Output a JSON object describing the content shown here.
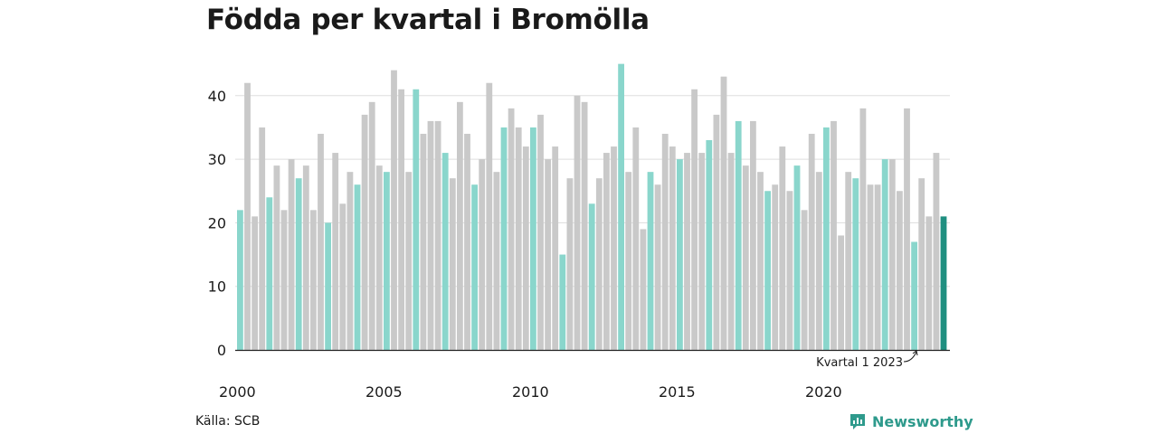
{
  "title": "Födda per kvartal i Bromölla",
  "source": "Källa: SCB",
  "brand": "Newsworthy",
  "annotation": "Kvartal 1 2023",
  "colors": {
    "q1": "#8ad6cc",
    "other": "#c9c9c9",
    "highlight": "#1f8f80",
    "grid": "#dddddd",
    "brand": "#2e9a8c"
  },
  "chart_data": {
    "type": "bar",
    "title": "Födda per kvartal i Bromölla",
    "xlabel": "",
    "ylabel": "",
    "ylim": [
      0,
      45
    ],
    "yticks": [
      0,
      10,
      20,
      30,
      40
    ],
    "xtick_labels": [
      "2000",
      "2005",
      "2010",
      "2015",
      "2020"
    ],
    "grid": true,
    "start_year": 2000,
    "values": [
      22,
      42,
      21,
      35,
      24,
      29,
      22,
      30,
      27,
      29,
      22,
      34,
      20,
      31,
      23,
      28,
      26,
      37,
      39,
      29,
      28,
      44,
      41,
      28,
      41,
      34,
      36,
      36,
      31,
      27,
      39,
      34,
      26,
      30,
      42,
      28,
      35,
      38,
      35,
      32,
      35,
      37,
      30,
      32,
      15,
      27,
      40,
      39,
      23,
      27,
      31,
      32,
      45,
      28,
      35,
      19,
      28,
      26,
      34,
      32,
      30,
      31,
      41,
      31,
      33,
      37,
      43,
      31,
      36,
      29,
      36,
      28,
      25,
      26,
      32,
      25,
      29,
      22,
      34,
      28,
      35,
      36,
      18,
      28,
      27,
      38,
      26,
      26,
      30,
      30,
      25,
      38,
      17,
      27,
      21,
      31,
      21
    ]
  }
}
